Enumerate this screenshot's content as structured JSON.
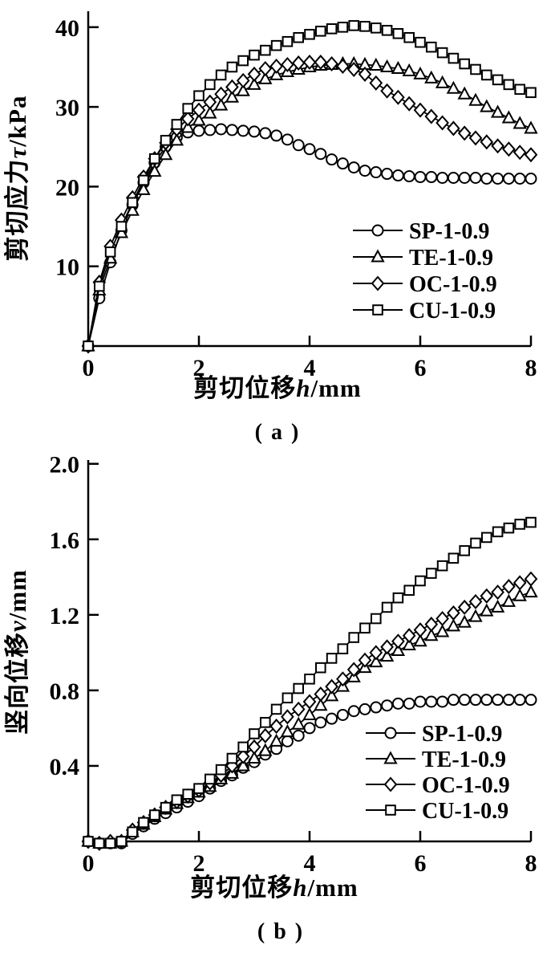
{
  "colors": {
    "ink": "#000000",
    "paper": "#ffffff"
  },
  "chart_data": [
    {
      "type": "line",
      "panel": "a",
      "caption": "( a )",
      "x_axis": {
        "label_cn": "剪切位移",
        "label_sym": "h",
        "label_unit": "/mm",
        "tick_labels": [
          "0",
          "2",
          "4",
          "6",
          "8"
        ],
        "tick_values": [
          0,
          2,
          4,
          6,
          8
        ],
        "range": [
          0,
          8
        ],
        "step": 0.2
      },
      "y_axis": {
        "label_cn": "剪切应力",
        "label_sym": "τ",
        "label_unit": "/kPa",
        "tick_labels": [
          "10",
          "20",
          "30",
          "40"
        ],
        "tick_values": [
          10,
          20,
          30,
          40
        ],
        "range": [
          0,
          42
        ]
      },
      "legend_position": "inside-right-bottom",
      "grid": false,
      "series": [
        {
          "name": "SP-1-0.9",
          "marker": "circle",
          "values": [
            0,
            6.0,
            10.5,
            14.5,
            17.7,
            20.5,
            23.0,
            25.0,
            26.2,
            26.8,
            27.0,
            27.1,
            27.2,
            27.1,
            27.0,
            26.9,
            26.7,
            26.4,
            25.9,
            25.2,
            24.7,
            24.1,
            23.4,
            22.9,
            22.4,
            22.0,
            21.8,
            21.6,
            21.4,
            21.3,
            21.2,
            21.2,
            21.1,
            21.1,
            21.1,
            21.1,
            21.0,
            21.0,
            21.0,
            21.0,
            21.0
          ]
        },
        {
          "name": "TE-1-0.9",
          "marker": "triangle",
          "values": [
            0,
            7.0,
            11.0,
            14.2,
            17.0,
            19.6,
            21.9,
            24.0,
            25.8,
            27.4,
            28.3,
            29.2,
            30.2,
            31.2,
            32.0,
            32.8,
            33.5,
            34.0,
            34.4,
            34.7,
            35.0,
            35.2,
            35.3,
            35.4,
            35.4,
            35.3,
            35.2,
            35.0,
            34.8,
            34.5,
            34.1,
            33.6,
            33.0,
            32.3,
            31.6,
            30.8,
            30.0,
            29.3,
            28.6,
            27.9,
            27.3
          ]
        },
        {
          "name": "OC-1-0.9",
          "marker": "diamond",
          "values": [
            0,
            8.0,
            12.5,
            15.8,
            18.6,
            21.2,
            23.5,
            25.5,
            27.2,
            28.5,
            29.6,
            30.6,
            31.6,
            32.5,
            33.3,
            34.1,
            34.8,
            35.1,
            35.3,
            35.5,
            35.6,
            35.6,
            35.4,
            35.1,
            34.7,
            34.1,
            33.0,
            32.0,
            31.2,
            30.4,
            29.6,
            28.8,
            28.0,
            27.3,
            26.7,
            26.1,
            25.6,
            25.1,
            24.7,
            24.3,
            24.0
          ]
        },
        {
          "name": "CU-1-0.9",
          "marker": "square",
          "values": [
            0,
            7.5,
            11.8,
            15.0,
            18.0,
            20.8,
            23.5,
            25.8,
            27.8,
            29.8,
            31.4,
            32.8,
            34.0,
            35.0,
            35.8,
            36.5,
            37.1,
            37.7,
            38.2,
            38.7,
            39.1,
            39.5,
            39.8,
            40.0,
            40.2,
            40.1,
            39.9,
            39.6,
            39.2,
            38.7,
            38.1,
            37.5,
            36.8,
            36.1,
            35.4,
            34.7,
            34.0,
            33.4,
            32.8,
            32.2,
            31.8
          ]
        }
      ]
    },
    {
      "type": "line",
      "panel": "b",
      "caption": "( b )",
      "x_axis": {
        "label_cn": "剪切位移",
        "label_sym": "h",
        "label_unit": "/mm",
        "tick_labels": [
          "0",
          "2",
          "4",
          "6",
          "8"
        ],
        "tick_values": [
          0,
          2,
          4,
          6,
          8
        ],
        "range": [
          0,
          8
        ],
        "step": 0.2
      },
      "y_axis": {
        "label_cn": "竖向位移",
        "label_sym": "v",
        "label_unit": "/mm",
        "tick_labels": [
          "0.4",
          "0.8",
          "1.2",
          "1.6",
          "2.0"
        ],
        "tick_values": [
          0.4,
          0.8,
          1.2,
          1.6,
          2.0
        ],
        "range": [
          0,
          2.02
        ]
      },
      "legend_position": "inside-right-bottom",
      "grid": false,
      "series": [
        {
          "name": "SP-1-0.9",
          "marker": "circle",
          "values": [
            0,
            -0.01,
            -0.01,
            -0.01,
            0.04,
            0.08,
            0.12,
            0.15,
            0.18,
            0.21,
            0.24,
            0.28,
            0.32,
            0.35,
            0.39,
            0.42,
            0.46,
            0.49,
            0.53,
            0.56,
            0.6,
            0.63,
            0.65,
            0.67,
            0.69,
            0.7,
            0.71,
            0.72,
            0.73,
            0.73,
            0.74,
            0.74,
            0.74,
            0.75,
            0.75,
            0.75,
            0.75,
            0.75,
            0.75,
            0.75,
            0.75
          ]
        },
        {
          "name": "TE-1-0.9",
          "marker": "triangle",
          "values": [
            0,
            -0.01,
            -0.01,
            0.0,
            0.05,
            0.09,
            0.13,
            0.17,
            0.2,
            0.23,
            0.26,
            0.29,
            0.33,
            0.36,
            0.4,
            0.44,
            0.48,
            0.53,
            0.58,
            0.62,
            0.67,
            0.72,
            0.77,
            0.82,
            0.87,
            0.92,
            0.95,
            0.98,
            1.01,
            1.04,
            1.06,
            1.09,
            1.11,
            1.14,
            1.16,
            1.19,
            1.22,
            1.24,
            1.27,
            1.3,
            1.32
          ]
        },
        {
          "name": "OC-1-0.9",
          "marker": "diamond",
          "values": [
            0,
            -0.01,
            0.0,
            0.0,
            0.06,
            0.1,
            0.14,
            0.18,
            0.21,
            0.24,
            0.27,
            0.31,
            0.35,
            0.4,
            0.45,
            0.5,
            0.56,
            0.61,
            0.66,
            0.7,
            0.74,
            0.78,
            0.82,
            0.86,
            0.91,
            0.96,
            1.0,
            1.03,
            1.06,
            1.09,
            1.12,
            1.15,
            1.18,
            1.21,
            1.24,
            1.27,
            1.3,
            1.32,
            1.35,
            1.37,
            1.39
          ]
        },
        {
          "name": "CU-1-0.9",
          "marker": "square",
          "values": [
            0,
            -0.01,
            -0.01,
            0.0,
            0.05,
            0.1,
            0.14,
            0.18,
            0.22,
            0.25,
            0.28,
            0.33,
            0.38,
            0.44,
            0.5,
            0.57,
            0.63,
            0.7,
            0.76,
            0.81,
            0.86,
            0.92,
            0.97,
            1.02,
            1.08,
            1.13,
            1.18,
            1.24,
            1.29,
            1.33,
            1.38,
            1.42,
            1.46,
            1.5,
            1.54,
            1.58,
            1.61,
            1.64,
            1.66,
            1.68,
            1.69
          ]
        }
      ]
    }
  ]
}
